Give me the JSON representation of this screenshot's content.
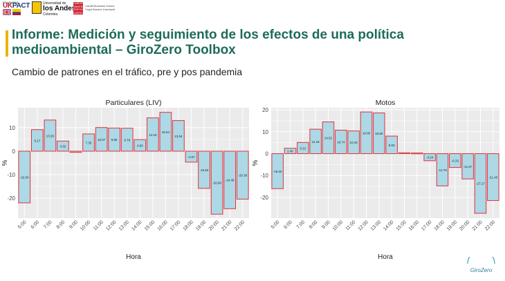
{
  "header": {
    "logos": {
      "ukpact_tag": "SOLIDARIA",
      "ukpact_prefix": "UK",
      "ukpact_name": "PACT",
      "uniandes_line1": "Universidad de",
      "uniandes_line2": "los Andes",
      "uniandes_line3": "Colombia",
      "cardiff_icon_text": "CARDIFF UNIVERSITY PRIFYSGOL CAERDYDD",
      "cardiff_line1": "Cardiff Business School",
      "cardiff_line2": "Ysgol Busnes Caerdydd"
    },
    "title": "Informe: Medición y seguimiento de los efectos de una política medioambiental – GiroZero Toolbox",
    "subtitle": "Cambio de patrones en el tráfico, pre y pos pandemia"
  },
  "footer": {
    "logo_text": "GiroZero"
  },
  "colors": {
    "bar_fill": "#add8e6",
    "bar_stroke": "#e0303a",
    "panel_bg": "#ebebeb",
    "grid": "#ffffff",
    "title_accent": "#e8b400",
    "title_text": "#1e6b5a"
  },
  "chart_data": [
    {
      "type": "bar",
      "title": "Particulares (LIV)",
      "xlabel": "Hora",
      "ylabel": "%",
      "categories": [
        "5:00",
        "6:00",
        "7:00",
        "8:00",
        "9:00",
        "10:00",
        "11:00",
        "12:00",
        "13:00",
        "14:00",
        "15:00",
        "16:00",
        "17:00",
        "18:00",
        "19:00",
        "20:00",
        "21:00",
        "22:00"
      ],
      "values": [
        -22.0,
        9.17,
        13.26,
        4.32,
        -0.5,
        7.35,
        10.07,
        9.86,
        9.79,
        4.93,
        14.18,
        16.54,
        13.04,
        -4.67,
        -15.82,
        -26.8,
        -24.48,
        -20.39
      ],
      "labels": [
        "-22.00",
        "9.17",
        "13.26",
        "4.32",
        "",
        "7.35",
        "10.07",
        "9.86",
        "9.79",
        "4.93",
        "14.18",
        "16.54",
        "13.04",
        "-4.67",
        "-15.82",
        "-26.80",
        "-24.48",
        "-20.39"
      ],
      "yticks": [
        10,
        0,
        -10,
        -20
      ],
      "ylim": [
        -28.5,
        18.5
      ],
      "grid": true
    },
    {
      "type": "bar",
      "title": "Motos",
      "xlabel": "Hora",
      "ylabel": "%",
      "categories": [
        "5:00",
        "6:00",
        "7:00",
        "8:00",
        "9:00",
        "10:00",
        "11:00",
        "12:00",
        "13:00",
        "14:00",
        "15:00",
        "16:00",
        "17:00",
        "18:00",
        "19:00",
        "20:00",
        "21:00",
        "22:00"
      ],
      "values": [
        -16.0,
        2.46,
        5.12,
        11.18,
        14.52,
        10.74,
        10.4,
        19.05,
        18.6,
        8.03,
        0.4,
        0.3,
        -3.24,
        -14.75,
        -6.33,
        -11.57,
        -27.27,
        -21.43
      ],
      "labels": [
        "-16.00",
        "2.46",
        "5.12",
        "11.18",
        "14.52",
        "10.74",
        "10.40",
        "19.05",
        "18.60",
        "8.03",
        "",
        "",
        "-3.24",
        "-14.75",
        "-6.33",
        "-11.57",
        "-27.27",
        "-21.43"
      ],
      "yticks": [
        20,
        10,
        0,
        -10,
        -20
      ],
      "ylim": [
        -29.5,
        21
      ],
      "grid": true
    }
  ]
}
